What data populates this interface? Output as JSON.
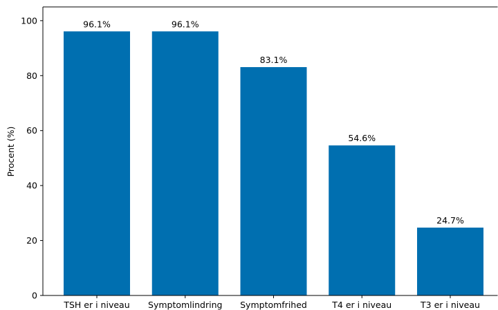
{
  "chart_data": {
    "type": "bar",
    "categories": [
      "TSH er i niveau",
      "Symptomlindring",
      "Symptomfrihed",
      "T4 er i niveau",
      "T3 er i niveau"
    ],
    "values": [
      96.1,
      96.1,
      83.1,
      54.6,
      24.7
    ],
    "data_labels": [
      "96.1%",
      "96.1%",
      "83.1%",
      "54.6%",
      "24.7%"
    ],
    "ylabel": "Procent (%)",
    "xlabel": "",
    "ylim": [
      0,
      105
    ],
    "yticks": [
      0,
      20,
      40,
      60,
      80,
      100
    ],
    "ytick_labels": [
      "0",
      "20",
      "40",
      "60",
      "80",
      "100"
    ],
    "grid": false,
    "colors": {
      "bar": "#006fb0",
      "axis": "#000000"
    }
  }
}
